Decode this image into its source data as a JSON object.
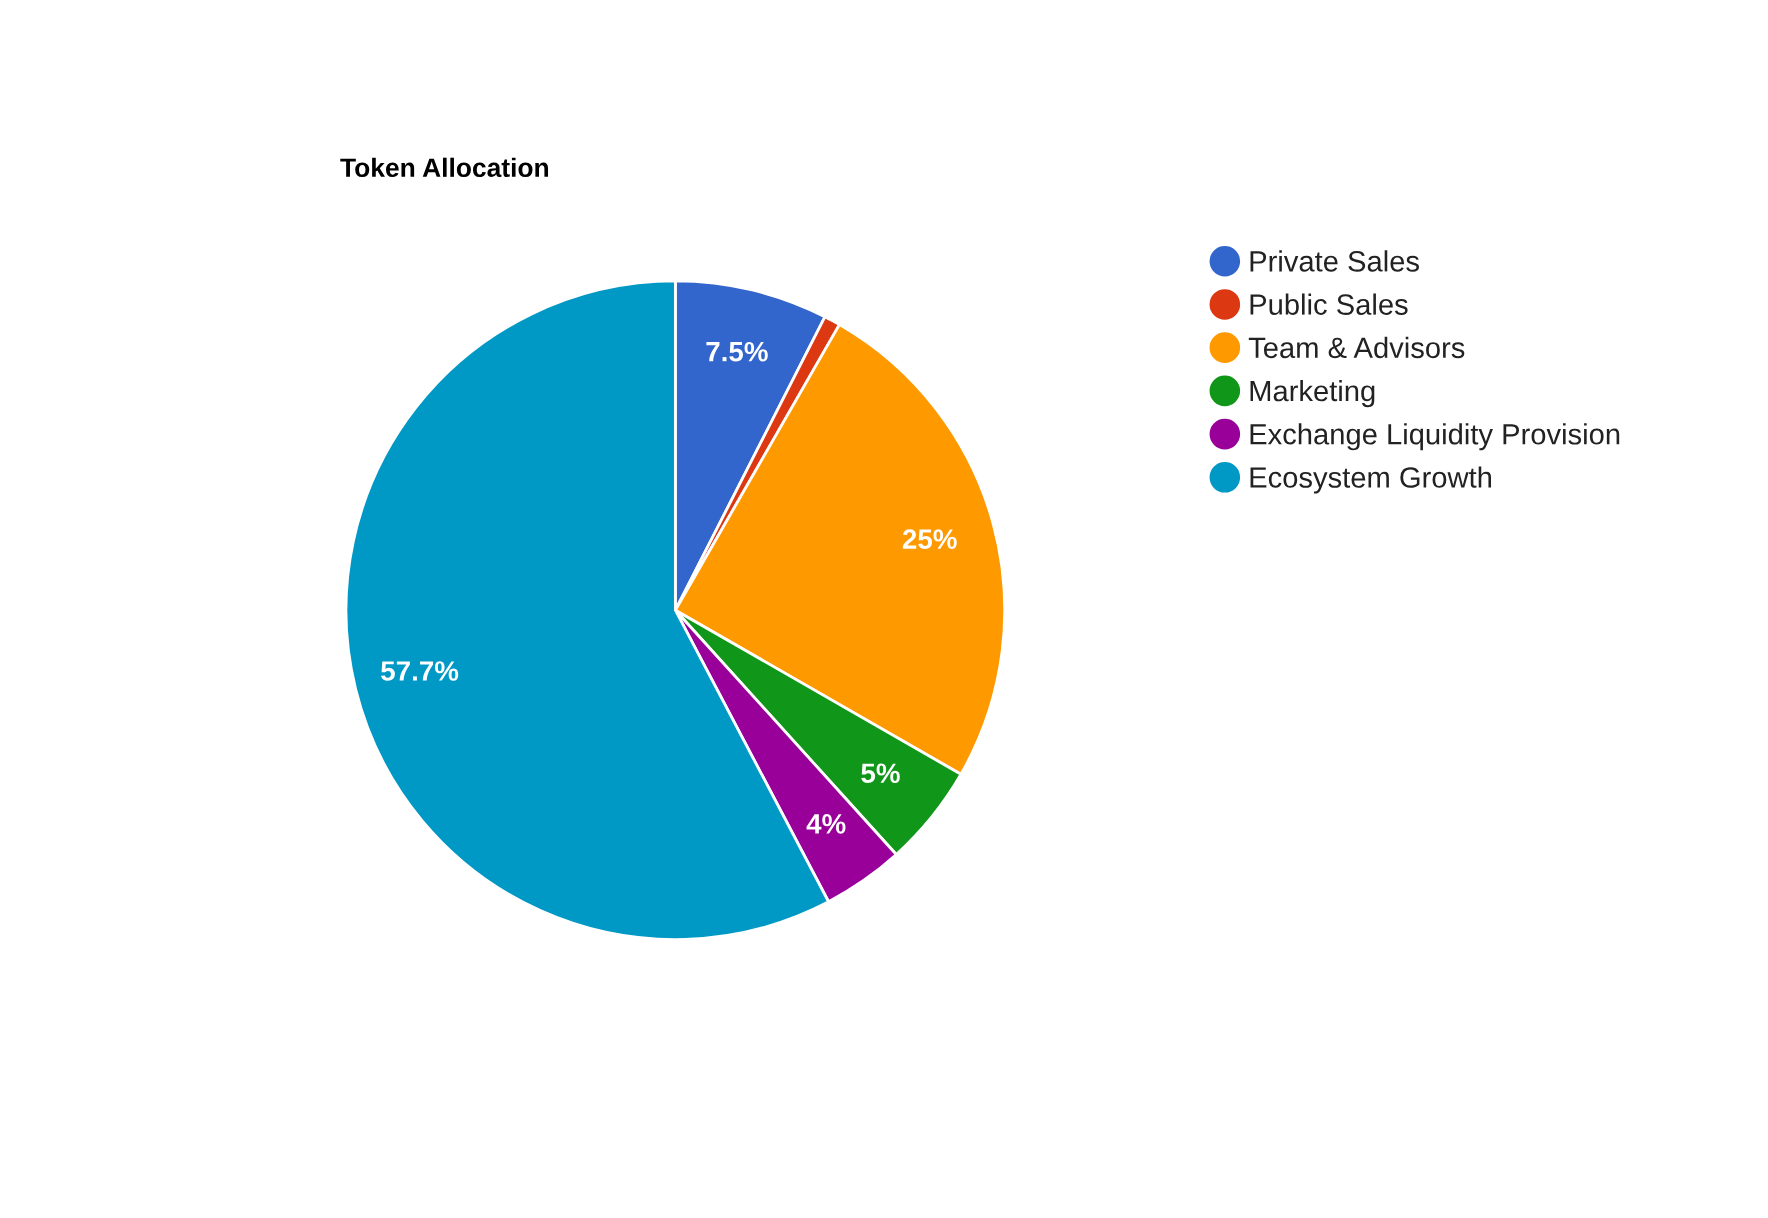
{
  "chart_data": {
    "type": "pie",
    "title": "Token Allocation",
    "categories": [
      "Private Sales",
      "Public Sales",
      "Team & Advisors",
      "Marketing",
      "Exchange Liquidity Provision",
      "Ecosystem Growth"
    ],
    "values": [
      7.5,
      0.8,
      25,
      5,
      4,
      57.7
    ],
    "colors": [
      "#3366cc",
      "#dc3912",
      "#ff9900",
      "#109618",
      "#990099",
      "#0099c6"
    ],
    "value_labels": [
      "7.5%",
      null,
      "25%",
      "5%",
      "4%",
      "57.7%"
    ],
    "legend": "right"
  }
}
